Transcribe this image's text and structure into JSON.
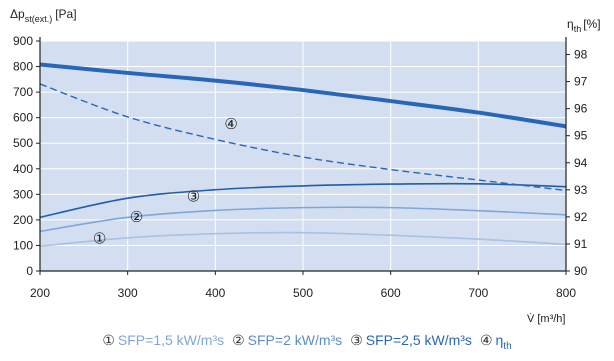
{
  "chart_data": {
    "type": "line",
    "left_axis_label_main": "Δp",
    "left_axis_label_sub": "st(ext.)",
    "left_axis_label_unit": "[Pa]",
    "right_axis_label_main": "η",
    "right_axis_label_sub": "th",
    "right_axis_label_unit": "[%]",
    "x_axis_label_main": "V̇",
    "x_axis_label_unit": "[m³/h]",
    "xlim": [
      200,
      800
    ],
    "ylim_left": [
      0,
      900
    ],
    "ylim_right": [
      90,
      98.5
    ],
    "x_ticks": [
      "200",
      "300",
      "400",
      "500",
      "600",
      "700",
      "800"
    ],
    "left_ticks": [
      "0",
      "100",
      "200",
      "300",
      "400",
      "500",
      "600",
      "700",
      "800",
      "900"
    ],
    "right_ticks": [
      "90",
      "91",
      "92",
      "93",
      "94",
      "95",
      "96",
      "97",
      "98"
    ],
    "series": [
      {
        "name": "",
        "axis": "left",
        "style": "solid-thick",
        "color": "#2a66b8",
        "x": [
          200,
          300,
          400,
          500,
          600,
          700,
          800
        ],
        "y": [
          808,
          775,
          745,
          708,
          665,
          620,
          566
        ]
      },
      {
        "name": "",
        "axis": "left",
        "style": "solid",
        "color": "#a8c2e2",
        "x": [
          200,
          300,
          400,
          500,
          600,
          700,
          800
        ],
        "y": [
          97,
          130,
          146,
          150,
          140,
          125,
          104
        ]
      },
      {
        "name": "",
        "axis": "left",
        "style": "solid",
        "color": "#7fa6d6",
        "x": [
          200,
          300,
          400,
          500,
          600,
          700,
          800
        ],
        "y": [
          155,
          210,
          237,
          248,
          248,
          236,
          220
        ]
      },
      {
        "name": "",
        "axis": "left",
        "style": "solid",
        "color": "#1f5ea8",
        "x": [
          200,
          300,
          400,
          500,
          600,
          700,
          800
        ],
        "y": [
          210,
          285,
          318,
          333,
          340,
          341,
          330
        ]
      },
      {
        "name": "",
        "axis": "left",
        "style": "dashed",
        "color": "#2a66b8",
        "x": [
          200,
          300,
          400,
          500,
          600,
          700,
          800
        ],
        "y": [
          732,
          603,
          515,
          446,
          397,
          356,
          315
        ]
      }
    ],
    "curve_markers": [
      {
        "label": "①",
        "x": 268,
        "y": 125
      },
      {
        "label": "②",
        "x": 310,
        "y": 210
      },
      {
        "label": "③",
        "x": 375,
        "y": 290
      },
      {
        "label": "④",
        "x": 418,
        "y": 573
      }
    ],
    "grid": true,
    "legend": [
      {
        "num": "①",
        "text": "SFP=1,5 kW/m³s",
        "color": "#7fa6d6"
      },
      {
        "num": "②",
        "text": "SFP=2 kW/m³s",
        "color": "#5b8ccc"
      },
      {
        "num": "③",
        "text": "SFP=2,5 kW/m³s",
        "color": "#2a66b8"
      },
      {
        "num": "④",
        "text": "η",
        "sub": "th",
        "color": "#2a66b8"
      }
    ]
  }
}
